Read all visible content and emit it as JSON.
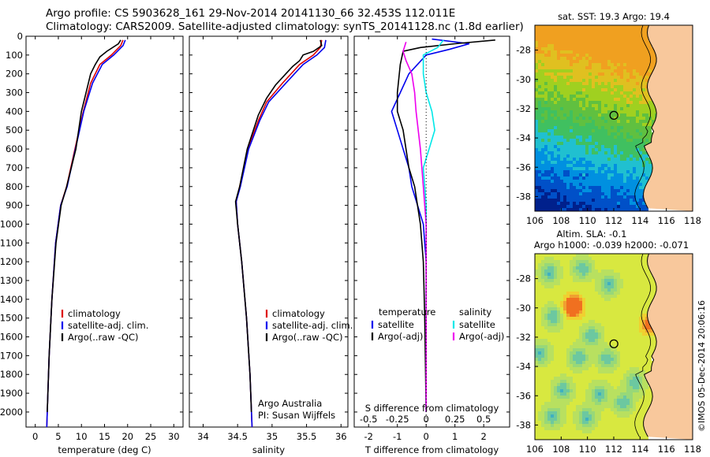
{
  "title_line1": "Argo profile: CS 5903628_161 29-Nov-2014 20141130_66 32.453S 112.011E",
  "title_line2": "Climatology: CARS2009. Satellite-adjusted climatology: synTS_20141128.nc (1.8d earlier)",
  "colors": {
    "climatology": "#dd0000",
    "satellite": "#0000ee",
    "argo": "#000000",
    "s_satellite": "#00e8e8",
    "s_argo": "#ee00ee",
    "land": "#f8c89c"
  },
  "chart_data": [
    {
      "type": "line",
      "name": "temperature",
      "xlabel": "temperature (deg C)",
      "ylabel": "",
      "xlim": [
        -2,
        32
      ],
      "ylim": [
        2080,
        0
      ],
      "x_ticks": [
        "0",
        "5",
        "10",
        "15",
        "20",
        "25",
        "30"
      ],
      "y_ticks": [
        "0",
        "100",
        "200",
        "300",
        "400",
        "500",
        "600",
        "700",
        "800",
        "900",
        "1000",
        "1100",
        "1200",
        "1300",
        "1400",
        "1500",
        "1600",
        "1700",
        "1800",
        "1900",
        "2000"
      ],
      "legend": [
        "climatology",
        "satellite-adj. clim.",
        "Argo(..raw -QC)"
      ],
      "series": [
        {
          "name": "climatology",
          "color": "#dd0000",
          "points": [
            [
              19.0,
              20
            ],
            [
              18.5,
              50
            ],
            [
              16.5,
              100
            ],
            [
              14.0,
              150
            ],
            [
              12.0,
              250
            ],
            [
              10.4,
              400
            ],
            [
              8.6,
              600
            ],
            [
              6.8,
              800
            ],
            [
              5.5,
              900
            ],
            [
              4.4,
              1100
            ],
            [
              3.6,
              1400
            ],
            [
              3.0,
              1700
            ],
            [
              2.6,
              2000
            ],
            [
              2.5,
              2080
            ]
          ]
        },
        {
          "name": "satellite-adj. clim.",
          "color": "#0000ee",
          "points": [
            [
              19.5,
              20
            ],
            [
              19.0,
              50
            ],
            [
              17.0,
              100
            ],
            [
              14.5,
              150
            ],
            [
              12.4,
              250
            ],
            [
              10.5,
              400
            ],
            [
              8.7,
              600
            ],
            [
              6.9,
              800
            ],
            [
              5.5,
              900
            ],
            [
              4.4,
              1100
            ],
            [
              3.6,
              1400
            ],
            [
              3.0,
              1700
            ],
            [
              2.6,
              2000
            ],
            [
              2.5,
              2080
            ]
          ]
        },
        {
          "name": "Argo(..raw -QC)",
          "color": "#000000",
          "points": [
            [
              18.5,
              20
            ],
            [
              18.0,
              40
            ],
            [
              15.5,
              80
            ],
            [
              14.0,
              110
            ],
            [
              13.0,
              150
            ],
            [
              12.0,
              200
            ],
            [
              11.0,
              300
            ],
            [
              10.0,
              400
            ],
            [
              8.8,
              600
            ],
            [
              6.8,
              800
            ],
            [
              5.6,
              900
            ],
            [
              4.5,
              1100
            ],
            [
              3.6,
              1400
            ],
            [
              3.0,
              1700
            ],
            [
              2.6,
              2000
            ]
          ]
        }
      ]
    },
    {
      "type": "line",
      "name": "salinity",
      "xlabel": "salinity",
      "xlim": [
        33.8,
        36.1
      ],
      "ylim": [
        2080,
        0
      ],
      "x_ticks": [
        "34",
        "34.5",
        "35",
        "35.5",
        "36"
      ],
      "legend": [
        "climatology",
        "satellite-adj. clim.",
        "Argo(..raw -QC)"
      ],
      "annotation": [
        "Argo Australia",
        "PI: Susan Wijffels"
      ],
      "series": [
        {
          "name": "climatology",
          "color": "#dd0000",
          "points": [
            [
              35.72,
              20
            ],
            [
              35.7,
              60
            ],
            [
              35.6,
              100
            ],
            [
              35.4,
              150
            ],
            [
              35.15,
              250
            ],
            [
              34.92,
              350
            ],
            [
              34.8,
              450
            ],
            [
              34.65,
              600
            ],
            [
              34.53,
              800
            ],
            [
              34.48,
              880
            ],
            [
              34.5,
              1000
            ],
            [
              34.56,
              1200
            ],
            [
              34.63,
              1500
            ],
            [
              34.68,
              1800
            ],
            [
              34.71,
              2080
            ]
          ]
        },
        {
          "name": "satellite-adj. clim.",
          "color": "#0000ee",
          "points": [
            [
              35.78,
              20
            ],
            [
              35.76,
              60
            ],
            [
              35.65,
              100
            ],
            [
              35.45,
              150
            ],
            [
              35.2,
              250
            ],
            [
              34.95,
              350
            ],
            [
              34.82,
              450
            ],
            [
              34.66,
              600
            ],
            [
              34.54,
              800
            ],
            [
              34.48,
              880
            ],
            [
              34.5,
              1000
            ],
            [
              34.56,
              1200
            ],
            [
              34.63,
              1500
            ],
            [
              34.68,
              1800
            ],
            [
              34.71,
              2080
            ]
          ]
        },
        {
          "name": "Argo(..raw -QC)",
          "color": "#000000",
          "points": [
            [
              35.7,
              20
            ],
            [
              35.72,
              50
            ],
            [
              35.6,
              80
            ],
            [
              35.45,
              100
            ],
            [
              35.4,
              130
            ],
            [
              35.3,
              160
            ],
            [
              35.2,
              200
            ],
            [
              35.05,
              260
            ],
            [
              34.92,
              330
            ],
            [
              34.8,
              420
            ],
            [
              34.64,
              600
            ],
            [
              34.53,
              800
            ],
            [
              34.47,
              880
            ],
            [
              34.5,
              1000
            ],
            [
              34.56,
              1200
            ],
            [
              34.63,
              1500
            ],
            [
              34.68,
              1800
            ],
            [
              34.7,
              2000
            ]
          ]
        }
      ]
    },
    {
      "type": "line",
      "name": "differences",
      "xlabel": "T difference from climatology",
      "xlabel_top": "S difference from climatology",
      "xlim": [
        -2.5,
        2.9
      ],
      "ylim": [
        2080,
        0
      ],
      "x_ticks": [
        "-2",
        "-1",
        "0",
        "1",
        "2"
      ],
      "s_ticks": [
        "-0.5",
        "-0.25",
        "0",
        "0.25",
        "0.5"
      ],
      "legend_temperature_header": "temperature",
      "legend_salinity_header": "salinity",
      "legend": [
        "satellite",
        "Argo(-adj)",
        "satellite",
        "Argo(-adj)"
      ],
      "series": [
        {
          "name": "T satellite",
          "color": "#0000ee",
          "points": [
            [
              0.2,
              15
            ],
            [
              1.5,
              40
            ],
            [
              0.8,
              70
            ],
            [
              0.0,
              100
            ],
            [
              -0.6,
              200
            ],
            [
              -0.9,
              300
            ],
            [
              -1.2,
              400
            ],
            [
              -1.0,
              500
            ],
            [
              -0.8,
              600
            ],
            [
              -0.6,
              700
            ],
            [
              -0.5,
              800
            ],
            [
              -0.3,
              900
            ],
            [
              -0.1,
              1000
            ],
            [
              0.0,
              1200
            ],
            [
              0.0,
              2000
            ]
          ]
        },
        {
          "name": "T Argo(-adj)",
          "color": "#000000",
          "points": [
            [
              2.4,
              20
            ],
            [
              1.0,
              40
            ],
            [
              -0.2,
              60
            ],
            [
              -0.8,
              80
            ],
            [
              -0.9,
              150
            ],
            [
              -1.0,
              300
            ],
            [
              -1.0,
              400
            ],
            [
              -0.8,
              500
            ],
            [
              -0.6,
              700
            ],
            [
              -0.4,
              800
            ],
            [
              -0.2,
              1000
            ],
            [
              -0.1,
              1200
            ],
            [
              -0.05,
              1500
            ],
            [
              0.0,
              2000
            ]
          ]
        },
        {
          "name": "S satellite",
          "color": "#00e8e8",
          "points": [
            [
              0.6,
              20
            ],
            [
              0.4,
              60
            ],
            [
              -0.1,
              100
            ],
            [
              -0.1,
              200
            ],
            [
              0.0,
              300
            ],
            [
              0.2,
              400
            ],
            [
              0.3,
              500
            ],
            [
              0.1,
              600
            ],
            [
              -0.1,
              700
            ],
            [
              -0.05,
              800
            ],
            [
              0.0,
              900
            ],
            [
              0.0,
              2000
            ]
          ]
        },
        {
          "name": "S Argo(-adj)",
          "color": "#ee00ee",
          "points": [
            [
              -0.7,
              30
            ],
            [
              -0.8,
              80
            ],
            [
              -0.7,
              130
            ],
            [
              -0.5,
              200
            ],
            [
              -0.4,
              300
            ],
            [
              -0.35,
              400
            ],
            [
              -0.2,
              600
            ],
            [
              -0.1,
              800
            ],
            [
              0.0,
              1000
            ],
            [
              0.0,
              2000
            ]
          ]
        }
      ]
    },
    {
      "type": "heatmap",
      "name": "sst_map",
      "title": "sat. SST: 19.3 Argo: 19.4",
      "x_ticks": [
        "106",
        "108",
        "110",
        "112",
        "114",
        "116",
        "118"
      ],
      "y_ticks": [
        "-28",
        "-30",
        "-32",
        "-34",
        "-36",
        "-38"
      ],
      "xlim": [
        106,
        118
      ],
      "ylim": [
        -39,
        -26.3
      ],
      "float_position": [
        112.011,
        -32.453
      ]
    },
    {
      "type": "heatmap",
      "name": "sla_map",
      "title": "Altim. SLA: -0.1",
      "subtitle": "Argo h1000: -0.039 h2000: -0.071",
      "x_ticks": [
        "106",
        "108",
        "110",
        "112",
        "114",
        "116",
        "118"
      ],
      "y_ticks": [
        "-28",
        "-30",
        "-32",
        "-34",
        "-36",
        "-38"
      ],
      "xlim": [
        106,
        118
      ],
      "ylim": [
        -39,
        -26.3
      ],
      "float_position": [
        112.011,
        -32.453
      ]
    }
  ],
  "credit": "©IMOS 05-Dec-2014 20:06:16"
}
